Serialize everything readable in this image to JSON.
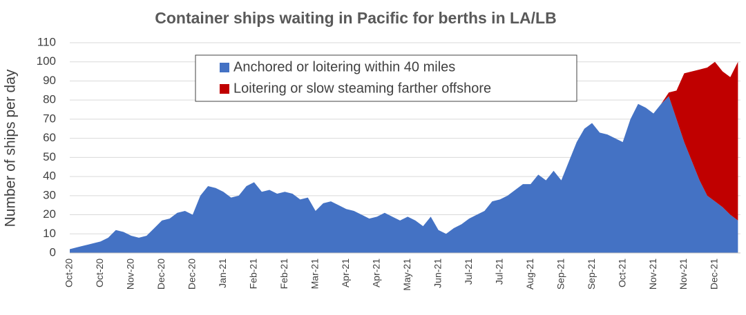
{
  "chart_data": {
    "type": "stacked_area",
    "title": "Container ships waiting in Pacific for berths in LA/LB",
    "y_label": "Number of ships per day",
    "categories": [
      "Oct-20",
      null,
      null,
      null,
      "Oct-20",
      null,
      null,
      null,
      "Nov-20",
      null,
      null,
      null,
      "Dec-20",
      null,
      null,
      null,
      "Dec-20",
      null,
      null,
      null,
      "Jan-21",
      null,
      null,
      null,
      "Feb-21",
      null,
      null,
      null,
      "Feb-21",
      null,
      null,
      null,
      "Mar-21",
      null,
      null,
      null,
      "Apr-21",
      null,
      null,
      null,
      "Apr-21",
      null,
      null,
      null,
      "May-21",
      null,
      null,
      null,
      "Jun-21",
      null,
      null,
      null,
      "Jul-21",
      null,
      null,
      null,
      "Jul-21",
      null,
      null,
      null,
      "Aug-21",
      null,
      null,
      null,
      "Sep-21",
      null,
      null,
      null,
      "Sep-21",
      null,
      null,
      null,
      "Oct-21",
      null,
      null,
      null,
      "Nov-21",
      null,
      null,
      null,
      "Nov-21",
      null,
      null,
      null,
      "Dec-21",
      null,
      null,
      null
    ],
    "series": [
      {
        "name": "Anchored or loitering within 40 miles",
        "color": "#4472c4",
        "values": [
          2,
          3,
          4,
          5,
          6,
          8,
          12,
          11,
          9,
          8,
          9,
          13,
          17,
          18,
          21,
          22,
          20,
          30,
          35,
          34,
          32,
          29,
          30,
          35,
          37,
          32,
          33,
          31,
          32,
          31,
          28,
          29,
          22,
          26,
          27,
          25,
          23,
          22,
          20,
          18,
          19,
          21,
          19,
          17,
          19,
          17,
          14,
          19,
          12,
          10,
          13,
          15,
          18,
          20,
          22,
          27,
          28,
          30,
          33,
          36,
          36,
          41,
          38,
          43,
          38,
          48,
          58,
          65,
          68,
          63,
          62,
          60,
          58,
          70,
          78,
          76,
          73,
          78,
          82,
          70,
          58,
          48,
          38,
          30,
          27,
          24,
          20,
          17
        ]
      },
      {
        "name": "Loitering or slow steaming farther offshore",
        "color": "#c00000",
        "values": [
          0,
          0,
          0,
          0,
          0,
          0,
          0,
          0,
          0,
          0,
          0,
          0,
          0,
          0,
          0,
          0,
          0,
          0,
          0,
          0,
          0,
          0,
          0,
          0,
          0,
          0,
          0,
          0,
          0,
          0,
          0,
          0,
          0,
          0,
          0,
          0,
          0,
          0,
          0,
          0,
          0,
          0,
          0,
          0,
          0,
          0,
          0,
          0,
          0,
          0,
          0,
          0,
          0,
          0,
          0,
          0,
          0,
          0,
          0,
          0,
          0,
          0,
          0,
          0,
          0,
          0,
          0,
          0,
          0,
          0,
          0,
          0,
          0,
          0,
          0,
          0,
          0,
          0,
          2,
          15,
          36,
          47,
          58,
          67,
          73,
          71,
          72,
          83
        ]
      }
    ],
    "ylim": [
      0,
      110
    ],
    "yticks": [
      0,
      10,
      20,
      30,
      40,
      50,
      60,
      70,
      80,
      90,
      100,
      110
    ],
    "grid": true
  }
}
